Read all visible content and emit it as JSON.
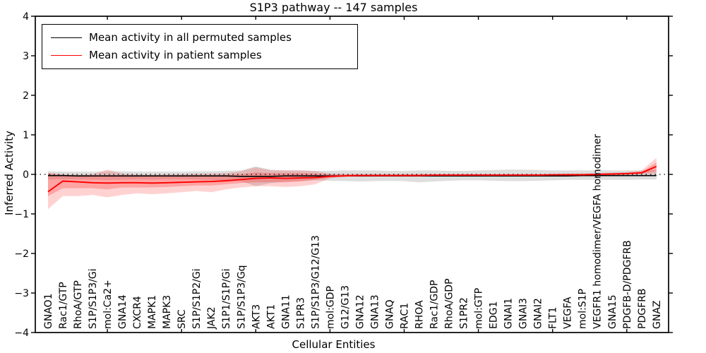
{
  "chart_data": {
    "type": "line",
    "title": "S1P3 pathway -- 147 samples",
    "xlabel": "Cellular Entities",
    "ylabel": "Inferred Activity",
    "ylim": [
      -4,
      4
    ],
    "ytick_labels": [
      "4",
      "3",
      "2",
      "1",
      "0",
      "−1",
      "−2",
      "−3",
      "−4"
    ],
    "grid": false,
    "zero_line": {
      "value": 0,
      "style": "dotted",
      "color": "#000000"
    },
    "legend": {
      "position": "upper left",
      "entries": [
        {
          "label": "Mean activity in all permuted samples",
          "color": "#000000"
        },
        {
          "label": "Mean activity in patient samples",
          "color": "#ff0000"
        }
      ]
    },
    "categories": [
      "GNAO1",
      "Rac1/GTP",
      "RhoA/GTP",
      "S1P/S1P3/Gi",
      "mol:Ca2+",
      "GNA14",
      "CXCR4",
      "MAPK1",
      "MAPK3",
      "SRC",
      "S1P/S1P2/Gi",
      "JAK2",
      "S1P1/S1P/Gi",
      "S1P/S1P3/Gq",
      "AKT3",
      "AKT1",
      "GNA11",
      "S1PR3",
      "S1P/S1P3/G12/G13",
      "mol:GDP",
      "G12/G13",
      "GNA12",
      "GNA13",
      "GNAQ",
      "RAC1",
      "RHOA",
      "Rac1/GDP",
      "RhoA/GDP",
      "S1PR2",
      "mol:GTP",
      "EDG1",
      "GNAI1",
      "GNAI3",
      "GNAI2",
      "FLT1",
      "VEGFA",
      "mol:S1P",
      "VEGFR1 homodimer/VEGFA homodimer",
      "GNA15",
      "PDGFB-D/PDGFRB",
      "PDGFRB",
      "GNAZ"
    ],
    "series": [
      {
        "name": "Mean activity in all permuted samples",
        "color": "#000000",
        "values": [
          -0.03,
          -0.03,
          -0.04,
          -0.04,
          -0.04,
          -0.04,
          -0.04,
          -0.04,
          -0.04,
          -0.04,
          -0.04,
          -0.04,
          -0.04,
          -0.05,
          -0.05,
          -0.05,
          -0.04,
          -0.04,
          -0.04,
          -0.04,
          -0.04,
          -0.04,
          -0.04,
          -0.04,
          -0.04,
          -0.04,
          -0.04,
          -0.04,
          -0.04,
          -0.04,
          -0.04,
          -0.04,
          -0.04,
          -0.04,
          -0.04,
          -0.04,
          -0.03,
          -0.03,
          -0.03,
          -0.03,
          -0.03,
          -0.03
        ]
      },
      {
        "name": "Mean activity in patient samples",
        "color": "#ff0000",
        "values": [
          -0.44,
          -0.17,
          -0.19,
          -0.21,
          -0.22,
          -0.21,
          -0.21,
          -0.22,
          -0.21,
          -0.2,
          -0.19,
          -0.18,
          -0.16,
          -0.13,
          -0.1,
          -0.09,
          -0.1,
          -0.09,
          -0.08,
          -0.05,
          -0.04,
          -0.03,
          -0.03,
          -0.03,
          -0.03,
          -0.03,
          -0.02,
          -0.02,
          -0.02,
          -0.02,
          -0.02,
          -0.02,
          -0.02,
          -0.02,
          -0.01,
          -0.01,
          -0.01,
          0.0,
          0.01,
          0.02,
          0.04,
          0.2
        ]
      }
    ],
    "bands": [
      {
        "name": "permuted samples range",
        "color": "#888888",
        "opacity": 0.28,
        "upper": [
          0.08,
          0.07,
          0.07,
          0.07,
          0.08,
          0.08,
          0.07,
          0.07,
          0.07,
          0.07,
          0.08,
          0.08,
          0.09,
          0.1,
          0.2,
          0.12,
          0.1,
          0.1,
          0.09,
          0.09,
          0.1,
          0.1,
          0.1,
          0.09,
          0.09,
          0.1,
          0.1,
          0.09,
          0.09,
          0.1,
          0.11,
          0.12,
          0.12,
          0.11,
          0.1,
          0.1,
          0.1,
          0.1,
          0.1,
          0.1,
          0.1,
          0.1
        ],
        "lower": [
          -0.13,
          -0.12,
          -0.12,
          -0.13,
          -0.14,
          -0.13,
          -0.12,
          -0.13,
          -0.12,
          -0.12,
          -0.13,
          -0.14,
          -0.15,
          -0.17,
          -0.3,
          -0.22,
          -0.18,
          -0.16,
          -0.15,
          -0.16,
          -0.17,
          -0.18,
          -0.17,
          -0.16,
          -0.17,
          -0.2,
          -0.18,
          -0.16,
          -0.15,
          -0.15,
          -0.16,
          -0.17,
          -0.17,
          -0.16,
          -0.15,
          -0.14,
          -0.14,
          -0.14,
          -0.14,
          -0.14,
          -0.13,
          -0.13
        ]
      },
      {
        "name": "patient samples outer range",
        "color": "#ff2020",
        "opacity": 0.2,
        "upper": [
          0.04,
          0.0,
          -0.01,
          0.0,
          0.12,
          0.02,
          0.0,
          -0.01,
          0.0,
          0.0,
          0.02,
          0.02,
          0.03,
          0.08,
          0.18,
          0.1,
          0.1,
          0.1,
          0.08,
          0.02,
          0.01,
          0.01,
          0.01,
          0.01,
          0.01,
          0.01,
          0.01,
          0.01,
          0.01,
          0.01,
          0.01,
          0.01,
          0.01,
          0.01,
          0.01,
          0.02,
          0.02,
          0.03,
          0.04,
          0.06,
          0.1,
          0.42
        ],
        "lower": [
          -0.88,
          -0.55,
          -0.55,
          -0.52,
          -0.58,
          -0.52,
          -0.48,
          -0.5,
          -0.48,
          -0.45,
          -0.42,
          -0.45,
          -0.38,
          -0.33,
          -0.3,
          -0.3,
          -0.32,
          -0.3,
          -0.25,
          -0.1,
          -0.06,
          -0.05,
          -0.05,
          -0.05,
          -0.05,
          -0.05,
          -0.04,
          -0.04,
          -0.04,
          -0.04,
          -0.04,
          -0.04,
          -0.04,
          -0.04,
          -0.04,
          -0.03,
          -0.03,
          -0.02,
          -0.02,
          -0.01,
          0.0,
          0.02
        ]
      },
      {
        "name": "patient samples inner range",
        "color": "#ff2020",
        "opacity": 0.26,
        "upper": [
          0.02,
          -0.05,
          -0.05,
          -0.05,
          -0.02,
          -0.03,
          -0.04,
          -0.05,
          -0.04,
          -0.04,
          -0.03,
          -0.02,
          -0.02,
          0.0,
          0.05,
          0.03,
          0.03,
          0.03,
          0.02,
          0.0,
          0.0,
          0.0,
          0.0,
          0.0,
          0.0,
          0.0,
          0.0,
          0.0,
          0.0,
          0.0,
          0.0,
          0.0,
          0.0,
          0.0,
          0.0,
          0.01,
          0.01,
          0.02,
          0.03,
          0.04,
          0.07,
          0.3
        ],
        "lower": [
          -0.55,
          -0.35,
          -0.35,
          -0.35,
          -0.38,
          -0.33,
          -0.33,
          -0.33,
          -0.32,
          -0.3,
          -0.28,
          -0.28,
          -0.25,
          -0.22,
          -0.2,
          -0.2,
          -0.2,
          -0.18,
          -0.14,
          -0.08,
          -0.04,
          -0.03,
          -0.03,
          -0.03,
          -0.03,
          -0.03,
          -0.03,
          -0.03,
          -0.03,
          -0.03,
          -0.03,
          -0.03,
          -0.03,
          -0.03,
          -0.03,
          -0.02,
          -0.02,
          -0.01,
          -0.01,
          0.0,
          0.02,
          0.08
        ]
      }
    ]
  }
}
